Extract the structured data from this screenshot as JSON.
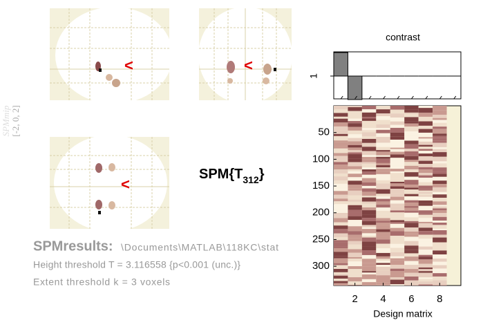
{
  "mip": {
    "label": "SPMmip",
    "coords": "[-2, 0, 2]",
    "markers": [
      "<",
      "<",
      "<"
    ]
  },
  "stat": {
    "prefix": "SPM{T",
    "df": "312",
    "suffix": "}"
  },
  "results": {
    "title": "SPMresults:",
    "path": "\\Documents\\MATLAB\\118KC\\stat",
    "height": "Height threshold T = 3.116558  {p<0.001 (unc.)}",
    "extent": "Extent threshold k = 3 voxels"
  },
  "contrast": {
    "title": "contrast",
    "label": "1",
    "weights": [
      1,
      -1,
      0,
      0,
      0,
      0,
      0,
      0,
      0
    ]
  },
  "design": {
    "xlabel": "Design matrix",
    "xlim": [
      0.5,
      9.5
    ],
    "xticks": [
      2,
      4,
      6,
      8
    ],
    "ylim": [
      0,
      336
    ],
    "yticks": [
      50,
      100,
      150,
      200,
      250,
      300
    ]
  }
}
